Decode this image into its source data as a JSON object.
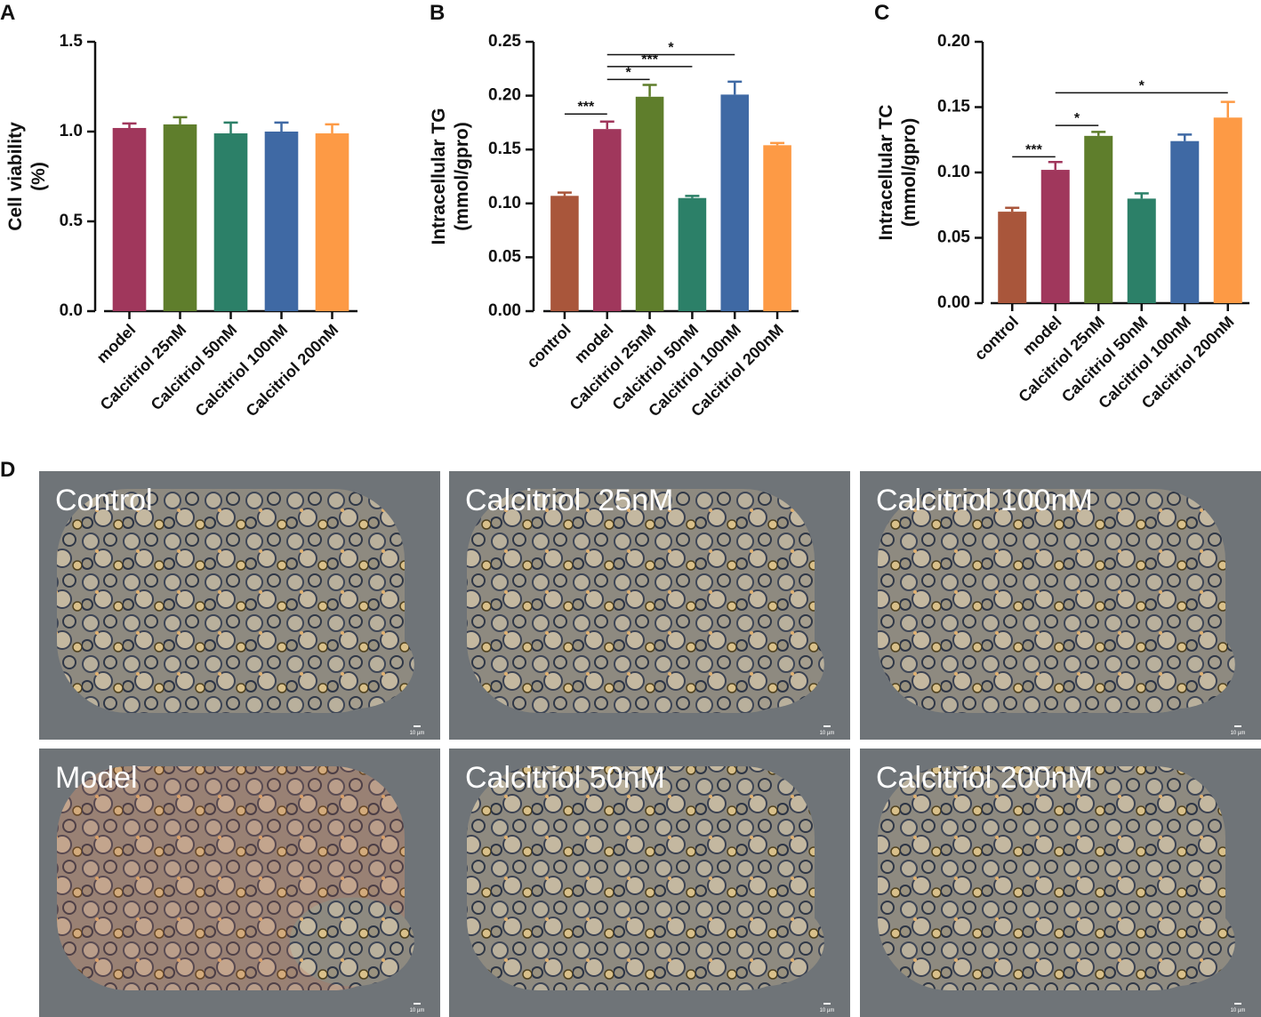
{
  "chart_data": [
    {
      "type": "bar",
      "panel": "A",
      "ylabel": [
        "Cell viability",
        "(%)"
      ],
      "categories": [
        "model",
        "Calcitriol 25nM",
        "Calcitriol 50nM",
        "Calcitriol 100nM",
        "Calcitriol 200nM"
      ],
      "values": [
        1.02,
        1.04,
        0.99,
        1.0,
        0.99
      ],
      "errors": [
        0.025,
        0.04,
        0.06,
        0.05,
        0.05
      ],
      "colors": [
        "#a0375c",
        "#5f7e2c",
        "#2c8068",
        "#3f69a4",
        "#fd9a45"
      ],
      "ylim": [
        0,
        1.5
      ],
      "yticks": [
        {
          "value": 0,
          "label": "0.0"
        },
        0.5,
        {
          "value": 1,
          "label": "1.0"
        },
        1.5
      ],
      "significance": []
    },
    {
      "type": "bar",
      "panel": "B",
      "ylabel": [
        "Intracellular TG",
        "(mmol/gpro)"
      ],
      "categories": [
        "control",
        "model",
        "Calcitriol 25nM",
        "Calcitriol 50nM",
        "Calcitriol 100nM",
        "Calcitriol 200nM"
      ],
      "values": [
        0.107,
        0.169,
        0.199,
        0.105,
        0.201,
        0.154
      ],
      "errors": [
        0.003,
        0.007,
        0.011,
        0.002,
        0.012,
        0.002
      ],
      "colors": [
        "#a9563b",
        "#a0375c",
        "#5f7e2c",
        "#2c8068",
        "#3f69a4",
        "#fd9a45"
      ],
      "ylim": [
        0,
        0.25
      ],
      "yticks": [
        {
          "value": 0,
          "label": "0.00"
        },
        0.05,
        {
          "value": 0.1,
          "label": "0.10"
        },
        0.15,
        {
          "value": 0.2,
          "label": "0.20"
        },
        0.25
      ],
      "significance": [
        {
          "between": [
            "control",
            "model"
          ],
          "label": "***",
          "y": 0.183
        },
        {
          "between": [
            "model",
            "Calcitriol 25nM"
          ],
          "label": "*",
          "y": 0.215
        },
        {
          "between": [
            "model",
            "Calcitriol 50nM"
          ],
          "label": "***",
          "y": 0.227
        },
        {
          "between": [
            "model",
            "Calcitriol 100nM"
          ],
          "label": "*",
          "y": 0.238
        }
      ]
    },
    {
      "type": "bar",
      "panel": "C",
      "ylabel": [
        "Intracellular TC",
        "(mmol/gpro)"
      ],
      "categories": [
        "control",
        "model",
        "Calcitriol 25nM",
        "Calcitriol 50nM",
        "Calcitriol 100nM",
        "Calcitriol 200nM"
      ],
      "values": [
        0.07,
        0.102,
        0.128,
        0.08,
        0.124,
        0.142
      ],
      "errors": [
        0.003,
        0.006,
        0.003,
        0.004,
        0.005,
        0.012
      ],
      "colors": [
        "#a9563b",
        "#a0375c",
        "#5f7e2c",
        "#2c8068",
        "#3f69a4",
        "#fd9a45"
      ],
      "ylim": [
        0,
        0.2
      ],
      "yticks": [
        {
          "value": 0,
          "label": "0.00"
        },
        0.05,
        {
          "value": 0.1,
          "label": "0.10"
        },
        0.15,
        {
          "value": 0.2,
          "label": "0.20"
        }
      ],
      "significance": [
        {
          "between": [
            "control",
            "model"
          ],
          "label": "***",
          "y": 0.112
        },
        {
          "between": [
            "model",
            "Calcitriol 25nM"
          ],
          "label": "*",
          "y": 0.136
        },
        {
          "between": [
            "model",
            "Calcitriol 200nM"
          ],
          "label": "*",
          "y": 0.161
        }
      ]
    }
  ],
  "micrographs": {
    "panel": "D",
    "labels": [
      "Control",
      "Calcitriol  25nM",
      "Calcitriol 100nM",
      "Model",
      "Calcitriol 50nM",
      "Calcitriol 200nM"
    ],
    "scale_bar": "10 µm"
  }
}
